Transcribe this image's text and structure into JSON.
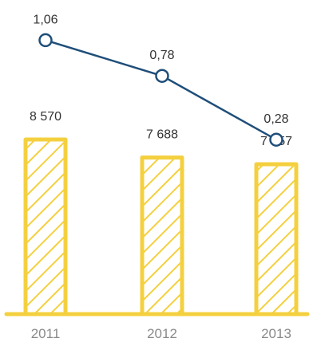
{
  "chart_data": {
    "type": "bar+line",
    "categories": [
      "2011",
      "2012",
      "2013"
    ],
    "series": [
      {
        "type": "bar",
        "values": [
          8570,
          7688,
          7357
        ],
        "labels": [
          "8 570",
          "7 688",
          "7 357"
        ],
        "color": "#f4d03f"
      },
      {
        "type": "line",
        "values": [
          1.06,
          0.78,
          0.28
        ],
        "labels": [
          "1,06",
          "0,78",
          "0,28"
        ],
        "color": "#1f4e79"
      }
    ],
    "title": "",
    "xlabel": "",
    "ylabel": "",
    "grid": false
  }
}
